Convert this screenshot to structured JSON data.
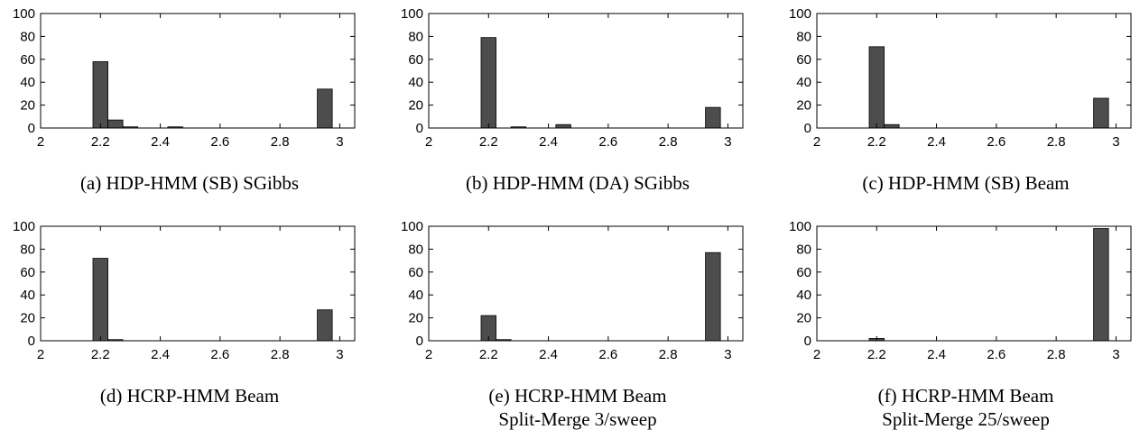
{
  "colors": {
    "bar": "#4d4d4d",
    "axis": "#000000",
    "background": "#ffffff"
  },
  "chart_data": [
    {
      "type": "bar",
      "title": "",
      "caption_lines": [
        "(a) HDP-HMM (SB) SGibbs"
      ],
      "xlim": [
        2,
        3.05
      ],
      "ylim": [
        0,
        100
      ],
      "xticks": [
        "2",
        "2.2",
        "2.4",
        "2.6",
        "2.8",
        "3"
      ],
      "yticks": [
        "0",
        "20",
        "40",
        "60",
        "80",
        "100"
      ],
      "bin_width": 0.05,
      "bins": [
        {
          "x": 2.2,
          "y": 58
        },
        {
          "x": 2.25,
          "y": 7
        },
        {
          "x": 2.3,
          "y": 1
        },
        {
          "x": 2.45,
          "y": 1
        },
        {
          "x": 2.95,
          "y": 34
        }
      ]
    },
    {
      "type": "bar",
      "title": "",
      "caption_lines": [
        "(b) HDP-HMM (DA) SGibbs"
      ],
      "xlim": [
        2,
        3.05
      ],
      "ylim": [
        0,
        100
      ],
      "xticks": [
        "2",
        "2.2",
        "2.4",
        "2.6",
        "2.8",
        "3"
      ],
      "yticks": [
        "0",
        "20",
        "40",
        "60",
        "80",
        "100"
      ],
      "bin_width": 0.05,
      "bins": [
        {
          "x": 2.2,
          "y": 79
        },
        {
          "x": 2.3,
          "y": 1
        },
        {
          "x": 2.45,
          "y": 3
        },
        {
          "x": 2.95,
          "y": 18
        }
      ]
    },
    {
      "type": "bar",
      "title": "",
      "caption_lines": [
        "(c) HDP-HMM (SB) Beam"
      ],
      "xlim": [
        2,
        3.05
      ],
      "ylim": [
        0,
        100
      ],
      "xticks": [
        "2",
        "2.2",
        "2.4",
        "2.6",
        "2.8",
        "3"
      ],
      "yticks": [
        "0",
        "20",
        "40",
        "60",
        "80",
        "100"
      ],
      "bin_width": 0.05,
      "bins": [
        {
          "x": 2.2,
          "y": 71
        },
        {
          "x": 2.25,
          "y": 3
        },
        {
          "x": 2.95,
          "y": 26
        }
      ]
    },
    {
      "type": "bar",
      "title": "",
      "caption_lines": [
        "(d) HCRP-HMM Beam"
      ],
      "xlim": [
        2,
        3.05
      ],
      "ylim": [
        0,
        100
      ],
      "xticks": [
        "2",
        "2.2",
        "2.4",
        "2.6",
        "2.8",
        "3"
      ],
      "yticks": [
        "0",
        "20",
        "40",
        "60",
        "80",
        "100"
      ],
      "bin_width": 0.05,
      "bins": [
        {
          "x": 2.2,
          "y": 72
        },
        {
          "x": 2.25,
          "y": 1
        },
        {
          "x": 2.95,
          "y": 27
        }
      ]
    },
    {
      "type": "bar",
      "title": "",
      "caption_lines": [
        "(e) HCRP-HMM Beam",
        "Split-Merge 3/sweep"
      ],
      "xlim": [
        2,
        3.05
      ],
      "ylim": [
        0,
        100
      ],
      "xticks": [
        "2",
        "2.2",
        "2.4",
        "2.6",
        "2.8",
        "3"
      ],
      "yticks": [
        "0",
        "20",
        "40",
        "60",
        "80",
        "100"
      ],
      "bin_width": 0.05,
      "bins": [
        {
          "x": 2.2,
          "y": 22
        },
        {
          "x": 2.25,
          "y": 1
        },
        {
          "x": 2.95,
          "y": 77
        }
      ]
    },
    {
      "type": "bar",
      "title": "",
      "caption_lines": [
        "(f) HCRP-HMM Beam",
        "Split-Merge 25/sweep"
      ],
      "xlim": [
        2,
        3.05
      ],
      "ylim": [
        0,
        100
      ],
      "xticks": [
        "2",
        "2.2",
        "2.4",
        "2.6",
        "2.8",
        "3"
      ],
      "yticks": [
        "0",
        "20",
        "40",
        "60",
        "80",
        "100"
      ],
      "bin_width": 0.05,
      "bins": [
        {
          "x": 2.2,
          "y": 2
        },
        {
          "x": 2.95,
          "y": 98
        }
      ]
    }
  ]
}
